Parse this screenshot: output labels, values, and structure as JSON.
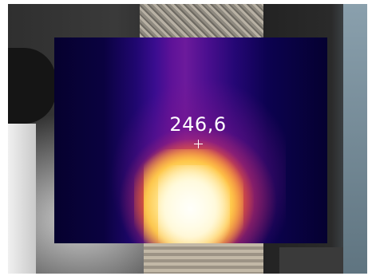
{
  "thermal_view": {
    "spot_temperature": "246,6",
    "palette": [
      "#06012e",
      "#3a0d90",
      "#a82896",
      "#e63c3c",
      "#ffaa28",
      "#fff0aa",
      "#fffffa"
    ]
  },
  "icons": {
    "crosshair": "crosshair-icon"
  }
}
